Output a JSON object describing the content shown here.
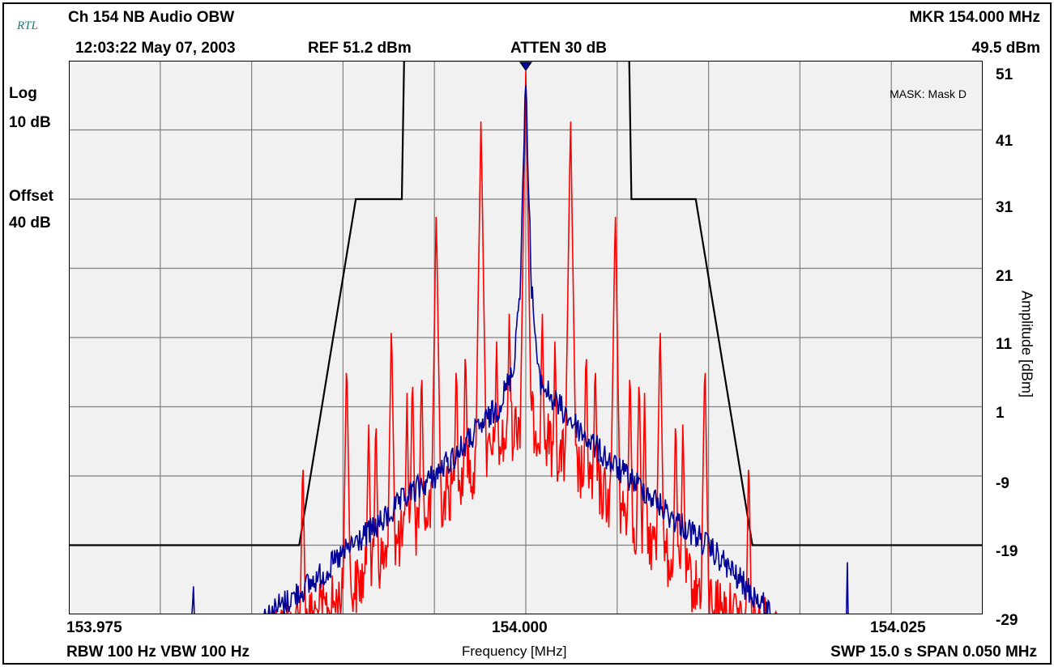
{
  "header": {
    "logo": "RTL",
    "title": "Ch 154 NB Audio OBW",
    "datetime": "12:03:22 May 07, 2003",
    "ref": "REF 51.2 dBm",
    "atten": "ATTEN 30 dB",
    "marker_freq": "MKR  154.000 MHz",
    "marker_level": "49.5 dBm"
  },
  "left_labels": {
    "scale": "Log",
    "div": "10 dB",
    "offset_label": "Offset",
    "offset_value": "40 dB"
  },
  "mask_label": "MASK: Mask D",
  "footer": {
    "rbw_vbw": "RBW 100 Hz  VBW 100 Hz",
    "xlabel": "Frequency [MHz]",
    "sweep_span": "SWP 15.0 s  SPAN 0.050 MHz"
  },
  "colors": {
    "background": "#f1f1f1",
    "grid": "#808080",
    "mask": "#000000",
    "trace_red": "#ff0000",
    "trace_blue": "#000099"
  },
  "chart_data": {
    "type": "line",
    "title": "Ch 154 NB Audio OBW",
    "xlabel": "Frequency [MHz]",
    "ylabel": "Amplitude [dBm]",
    "xlim": [
      153.975,
      154.025
    ],
    "ylim": [
      -29,
      51
    ],
    "grid": true,
    "x_ticks": [
      "153.975",
      "154.000",
      "154.025"
    ],
    "y_ticks": [
      "51",
      "41",
      "31",
      "21",
      "11",
      "1",
      "-9",
      "-19",
      "-29"
    ],
    "marker": {
      "x": 154.0,
      "y": 49.5
    },
    "mask": {
      "name": "Mask D",
      "x": [
        153.975,
        153.9876,
        153.9907,
        153.99322,
        153.99334,
        154.00566,
        154.00578,
        154.0093,
        154.0124,
        154.025
      ],
      "y": [
        -19,
        -19,
        31,
        31,
        51,
        51,
        31,
        31,
        -19,
        -19
      ]
    },
    "series": [
      {
        "color": "#ff0000",
        "floor": -29,
        "noise_max": [
          -27,
          -26,
          -24,
          -21,
          -17,
          -13,
          -9,
          -5,
          -2,
          1,
          3,
          4,
          4,
          3,
          1,
          -2,
          -5,
          -9,
          -13,
          -17,
          -21,
          -24,
          -26,
          -27
        ],
        "noise_x": [
          153.986,
          153.9875,
          153.989,
          153.9905,
          153.992,
          153.9935,
          153.995,
          153.9965,
          153.998,
          153.999,
          153.9995,
          154.0,
          154.0,
          154.0005,
          154.001,
          154.002,
          154.0035,
          154.005,
          154.0065,
          154.008,
          154.0095,
          154.011,
          154.0125,
          154.014
        ],
        "peaks": {
          "x": [
            154.0,
            153.99755,
            154.00245,
            153.9951,
            154.0049,
            153.99265,
            154.00735,
            153.9902,
            154.0098,
            153.9878,
            154.0122,
            153.9991,
            154.0009,
            153.9984,
            154.0016,
            153.9967,
            154.0033,
            153.9962,
            154.0038,
            153.9943,
            154.0057,
            153.9938,
            154.0062,
            153.9918,
            154.0082,
            153.9914,
            154.0086,
            153.9935,
            154.0065,
            154.0183
          ],
          "y": [
            49.5,
            43,
            43,
            30,
            30,
            14,
            14,
            9,
            9,
            -5,
            -5,
            16,
            16,
            12,
            12,
            11,
            11,
            9,
            9,
            8,
            8,
            7,
            7,
            1,
            1,
            0,
            0,
            3,
            3,
            -27
          ]
        }
      },
      {
        "color": "#000099",
        "floor": -29,
        "envelope_x": [
          153.975,
          153.9855,
          153.9865,
          153.9875,
          153.989,
          153.9905,
          153.992,
          153.9935,
          153.995,
          153.9965,
          153.9975,
          153.9985,
          153.9993,
          153.9997,
          154.0,
          154.0003,
          154.0007,
          154.0015,
          154.0025,
          154.0035,
          154.005,
          154.0065,
          154.008,
          154.0095,
          154.011,
          154.012,
          154.0135,
          154.025
        ],
        "envelope_y": [
          -29,
          -29,
          -27,
          -25,
          -22,
          -18,
          -15,
          -11,
          -8,
          -4,
          -1,
          2,
          7,
          20,
          49.5,
          20,
          6,
          3,
          0,
          -3,
          -7,
          -10,
          -14,
          -17,
          -21,
          -24,
          -28,
          -29
        ],
        "peaks": {
          "x": [
            153.9818,
            154.0176,
            153.9865
          ],
          "y": [
            -20,
            -19,
            -26
          ]
        }
      }
    ]
  }
}
